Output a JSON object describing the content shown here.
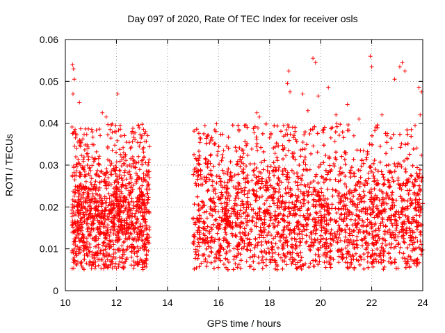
{
  "chart_data": {
    "type": "scatter",
    "title": "Day 097 of 2020, Rate Of TEC Index for receiver osls",
    "xlabel": "GPS time / hours",
    "ylabel": "ROTI / TECUs",
    "xlim": [
      10,
      24
    ],
    "ylim": [
      0,
      0.06
    ],
    "x_ticks": [
      10,
      12,
      14,
      16,
      18,
      20,
      22,
      24
    ],
    "y_ticks": [
      0,
      0.01,
      0.02,
      0.03,
      0.04,
      0.05,
      0.06
    ],
    "x_tick_labels": [
      "10",
      "12",
      "14",
      "16",
      "18",
      "20",
      "22",
      "24"
    ],
    "y_tick_labels": [
      "0",
      "0.01",
      "0.02",
      "0.03",
      "0.04",
      "0.05",
      "0.06"
    ],
    "grid": true,
    "marker": "+",
    "color": "#ff0000",
    "data_segments": [
      {
        "x_start": 10.25,
        "x_end": 13.3
      },
      {
        "x_start": 15.0,
        "x_end": 24.0
      }
    ],
    "value_range": [
      0.005,
      0.056
    ],
    "series": [
      {
        "name": "ROTI",
        "points": [
          [
            10.28,
            0.054
          ],
          [
            10.32,
            0.053
          ],
          [
            10.35,
            0.0505
          ],
          [
            10.3,
            0.047
          ],
          [
            10.38,
            0.0385
          ],
          [
            10.4,
            0.0365
          ],
          [
            10.45,
            0.034
          ],
          [
            10.5,
            0.0305
          ],
          [
            10.55,
            0.045
          ],
          [
            10.6,
            0.0255
          ],
          [
            10.7,
            0.0095
          ],
          [
            10.75,
            0.0085
          ],
          [
            10.9,
            0.032
          ],
          [
            11.1,
            0.0065
          ],
          [
            11.3,
            0.006
          ],
          [
            11.45,
            0.0425
          ],
          [
            11.6,
            0.0415
          ],
          [
            11.75,
            0.0385
          ],
          [
            11.9,
            0.0245
          ],
          [
            12.05,
            0.047
          ],
          [
            12.15,
            0.0395
          ],
          [
            12.3,
            0.0055
          ],
          [
            12.4,
            0.0075
          ],
          [
            12.55,
            0.034
          ],
          [
            12.7,
            0.031
          ],
          [
            12.85,
            0.0395
          ],
          [
            13.0,
            0.037
          ],
          [
            13.1,
            0.0375
          ],
          [
            13.2,
            0.026
          ],
          [
            13.25,
            0.0095
          ],
          [
            15.05,
            0.029
          ],
          [
            15.2,
            0.0095
          ],
          [
            15.4,
            0.0085
          ],
          [
            15.7,
            0.0325
          ],
          [
            15.9,
            0.038
          ],
          [
            16.2,
            0.0335
          ],
          [
            16.45,
            0.0095
          ],
          [
            16.6,
            0.0075
          ],
          [
            16.8,
            0.0385
          ],
          [
            17.1,
            0.007
          ],
          [
            17.5,
            0.0425
          ],
          [
            17.6,
            0.0415
          ],
          [
            17.8,
            0.0095
          ],
          [
            18.0,
            0.0365
          ],
          [
            18.3,
            0.0255
          ],
          [
            18.55,
            0.0395
          ],
          [
            18.7,
            0.0495
          ],
          [
            18.75,
            0.0525
          ],
          [
            18.8,
            0.0475
          ],
          [
            19.1,
            0.0055
          ],
          [
            19.3,
            0.047
          ],
          [
            19.5,
            0.043
          ],
          [
            19.7,
            0.0555
          ],
          [
            19.8,
            0.0545
          ],
          [
            19.9,
            0.0465
          ],
          [
            20.1,
            0.0085
          ],
          [
            20.3,
            0.0485
          ],
          [
            20.4,
            0.0365
          ],
          [
            20.6,
            0.042
          ],
          [
            20.85,
            0.0075
          ],
          [
            21.05,
            0.0445
          ],
          [
            21.3,
            0.037
          ],
          [
            21.5,
            0.041
          ],
          [
            21.7,
            0.0075
          ],
          [
            21.95,
            0.056
          ],
          [
            22.0,
            0.0535
          ],
          [
            22.2,
            0.0085
          ],
          [
            22.4,
            0.042
          ],
          [
            22.6,
            0.037
          ],
          [
            22.75,
            0.0065
          ],
          [
            22.9,
            0.0505
          ],
          [
            23.1,
            0.0535
          ],
          [
            23.2,
            0.0545
          ],
          [
            23.3,
            0.0525
          ],
          [
            23.4,
            0.0075
          ],
          [
            23.55,
            0.0385
          ],
          [
            23.7,
            0.0395
          ],
          [
            23.85,
            0.0485
          ],
          [
            23.95,
            0.0475
          ],
          [
            23.9,
            0.042
          ]
        ]
      }
    ]
  }
}
